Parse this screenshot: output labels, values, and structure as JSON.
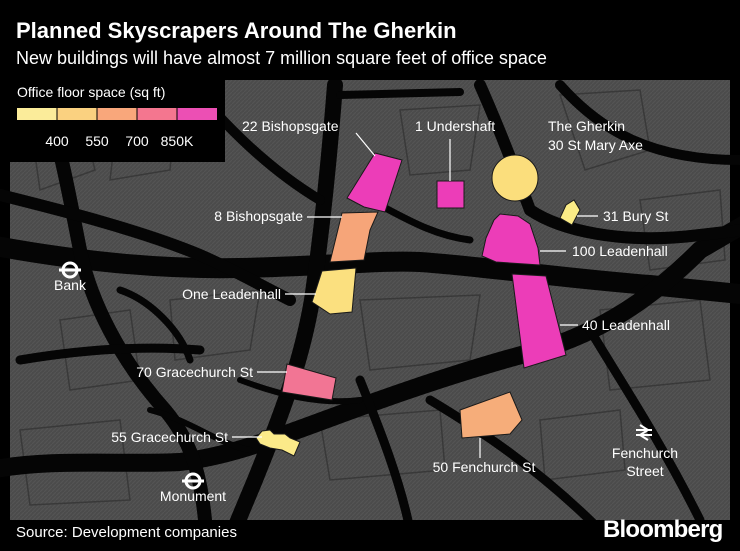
{
  "header": {
    "title": "Planned Skyscrapers Around The Gherkin",
    "subtitle": "New buildings will have almost 7 million square feet of office space"
  },
  "legend": {
    "title": "Office floor space (sq ft)",
    "colors": [
      "#fbec9a",
      "#fad180",
      "#f9a77b",
      "#f4768f",
      "#ec4fb4"
    ],
    "ticks": [
      "400",
      "550",
      "700",
      "850K"
    ]
  },
  "buildings": [
    {
      "name": "22 Bishopsgate",
      "color": "#ec3db8"
    },
    {
      "name": "1 Undershaft",
      "color": "#ec3db8"
    },
    {
      "name": "The Gherkin",
      "sublabel": "30 St Mary Axe",
      "color": "#fbde7c"
    },
    {
      "name": "8 Bishopsgate",
      "color": "#f6a579"
    },
    {
      "name": "31 Bury St",
      "color": "#fbec86"
    },
    {
      "name": "100 Leadenhall",
      "color": "#ec3db8"
    },
    {
      "name": "One Leadenhall",
      "color": "#fbe07f"
    },
    {
      "name": "40 Leadenhall",
      "color": "#ec3db8"
    },
    {
      "name": "70 Gracechurch St",
      "color": "#f27594"
    },
    {
      "name": "55 Gracechurch St",
      "color": "#fbea89"
    },
    {
      "name": "50 Fenchurch St",
      "color": "#f6ad7a"
    }
  ],
  "stations": [
    {
      "name": "Bank",
      "icon": "underground-roundel-icon"
    },
    {
      "name": "Monument",
      "icon": "underground-roundel-icon"
    },
    {
      "name": "Fenchurch",
      "sublabel": "Street",
      "icon": "national-rail-icon"
    }
  ],
  "footer": {
    "source": "Source: Development companies",
    "brand": "Bloomberg"
  }
}
